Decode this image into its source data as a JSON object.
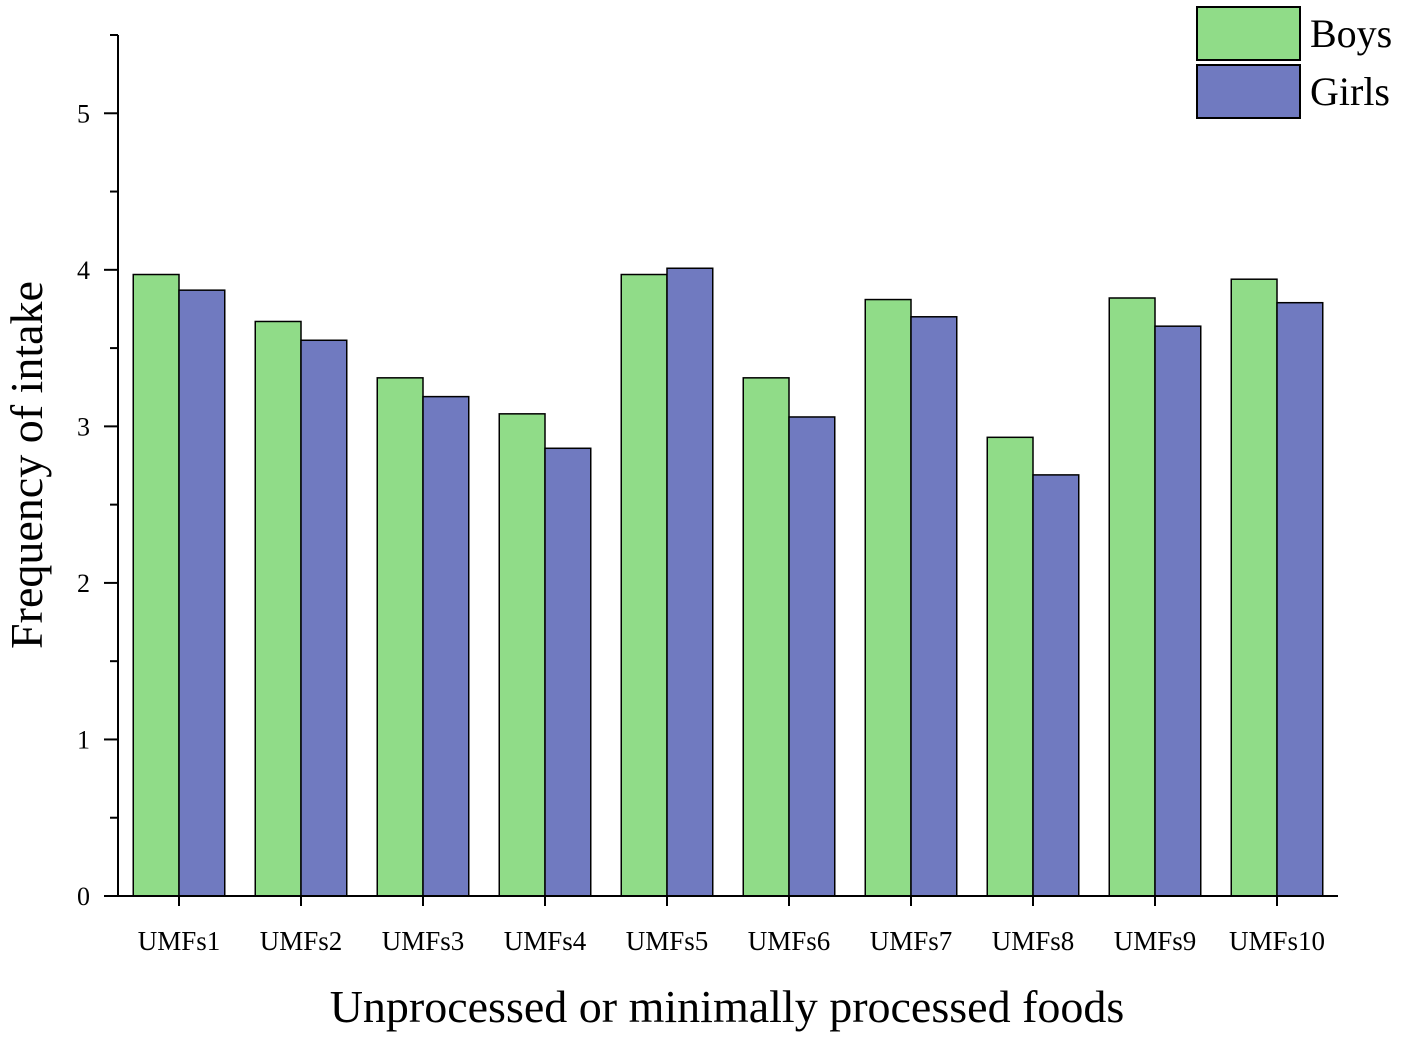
{
  "chart_data": {
    "type": "bar",
    "xlabel": "Unprocessed or minimally processed foods",
    "ylabel": "Frequency of intake",
    "categories": [
      "UMFs1",
      "UMFs2",
      "UMFs3",
      "UMFs4",
      "UMFs5",
      "UMFs6",
      "UMFs7",
      "UMFs8",
      "UMFs9",
      "UMFs10"
    ],
    "series": [
      {
        "name": "Boys",
        "color": "#90dc88",
        "values": [
          3.97,
          3.67,
          3.31,
          3.08,
          3.97,
          3.31,
          3.81,
          2.93,
          3.82,
          3.94
        ]
      },
      {
        "name": "Girls",
        "color": "#707ac0",
        "values": [
          3.87,
          3.55,
          3.19,
          2.86,
          4.01,
          3.06,
          3.7,
          2.69,
          3.64,
          3.79
        ]
      }
    ],
    "ylim": [
      0,
      5.5
    ],
    "yticks": [
      0,
      1,
      2,
      3,
      4,
      5
    ],
    "grid": false,
    "legend_position": "top-right"
  }
}
